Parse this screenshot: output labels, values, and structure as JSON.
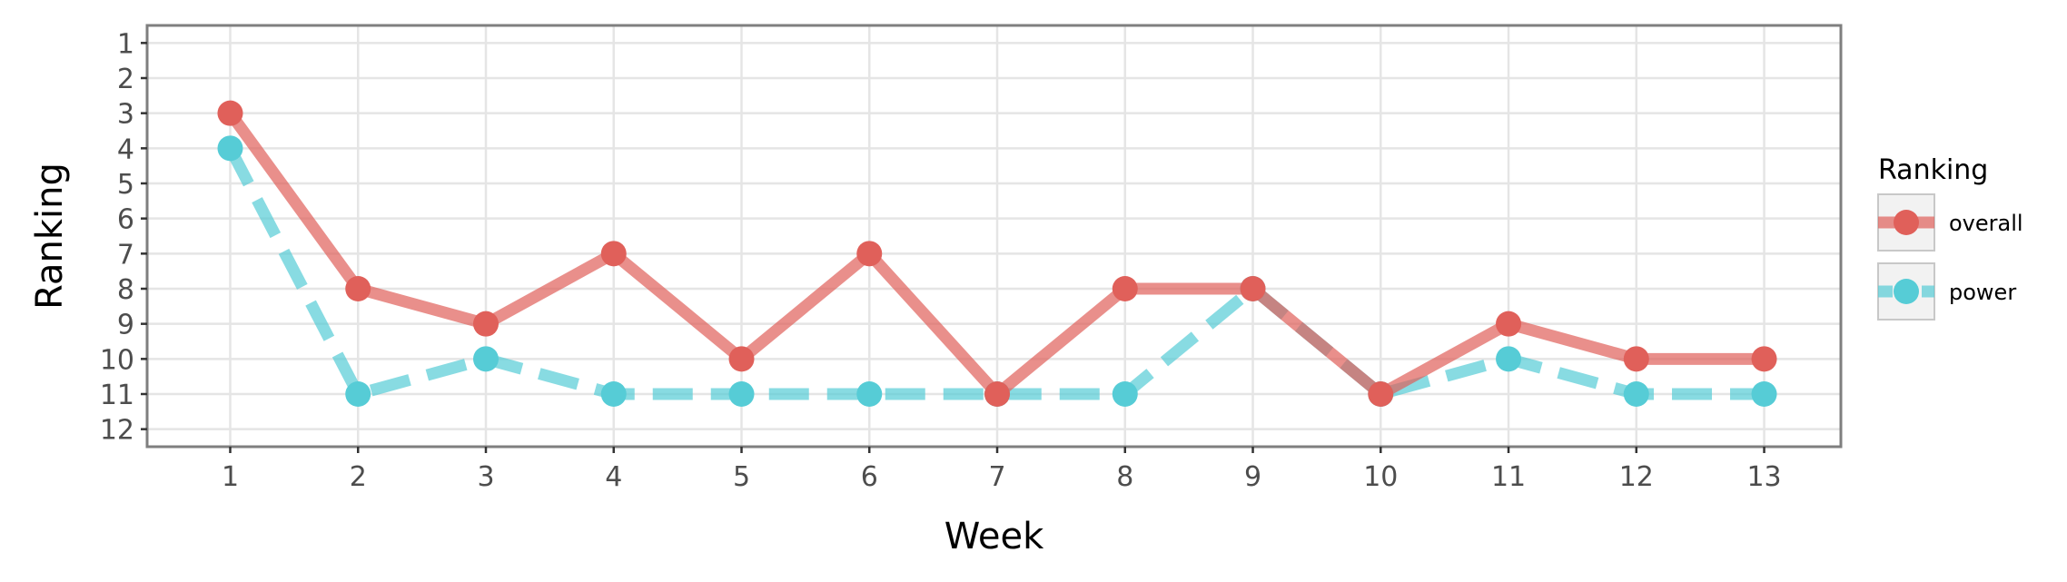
{
  "chart_data": {
    "type": "line",
    "title": "",
    "xlabel": "Week",
    "ylabel": "Ranking",
    "x": [
      1,
      2,
      3,
      4,
      5,
      6,
      7,
      8,
      9,
      10,
      11,
      12,
      13
    ],
    "x_ticks": [
      1,
      2,
      3,
      4,
      5,
      6,
      7,
      8,
      9,
      10,
      11,
      12,
      13
    ],
    "y_ticks": [
      1,
      2,
      3,
      4,
      5,
      6,
      7,
      8,
      9,
      10,
      11,
      12
    ],
    "xlim": [
      0.35,
      13.6
    ],
    "ylim": [
      12.5,
      0.5
    ],
    "y_reversed": true,
    "grid": true,
    "legend": {
      "title": "Ranking",
      "placement": "right"
    },
    "series": [
      {
        "name": "overall",
        "values": [
          3,
          8,
          9,
          7,
          10,
          7,
          11,
          8,
          8,
          11,
          9,
          10,
          10
        ],
        "color": "#e0605a",
        "line_style": "solid"
      },
      {
        "name": "power",
        "values": [
          4,
          11,
          10,
          11,
          11,
          11,
          11,
          11,
          8,
          11,
          10,
          11,
          11
        ],
        "color": "#56ccd6",
        "line_style": "dashed"
      }
    ],
    "colors": {
      "grid": "#e5e5e5",
      "panel_border": "#7f7f7f",
      "tick_text": "#4d4d4d",
      "legend_key_bg": "#f2f2f2",
      "legend_key_border": "#c8c8c8"
    }
  }
}
